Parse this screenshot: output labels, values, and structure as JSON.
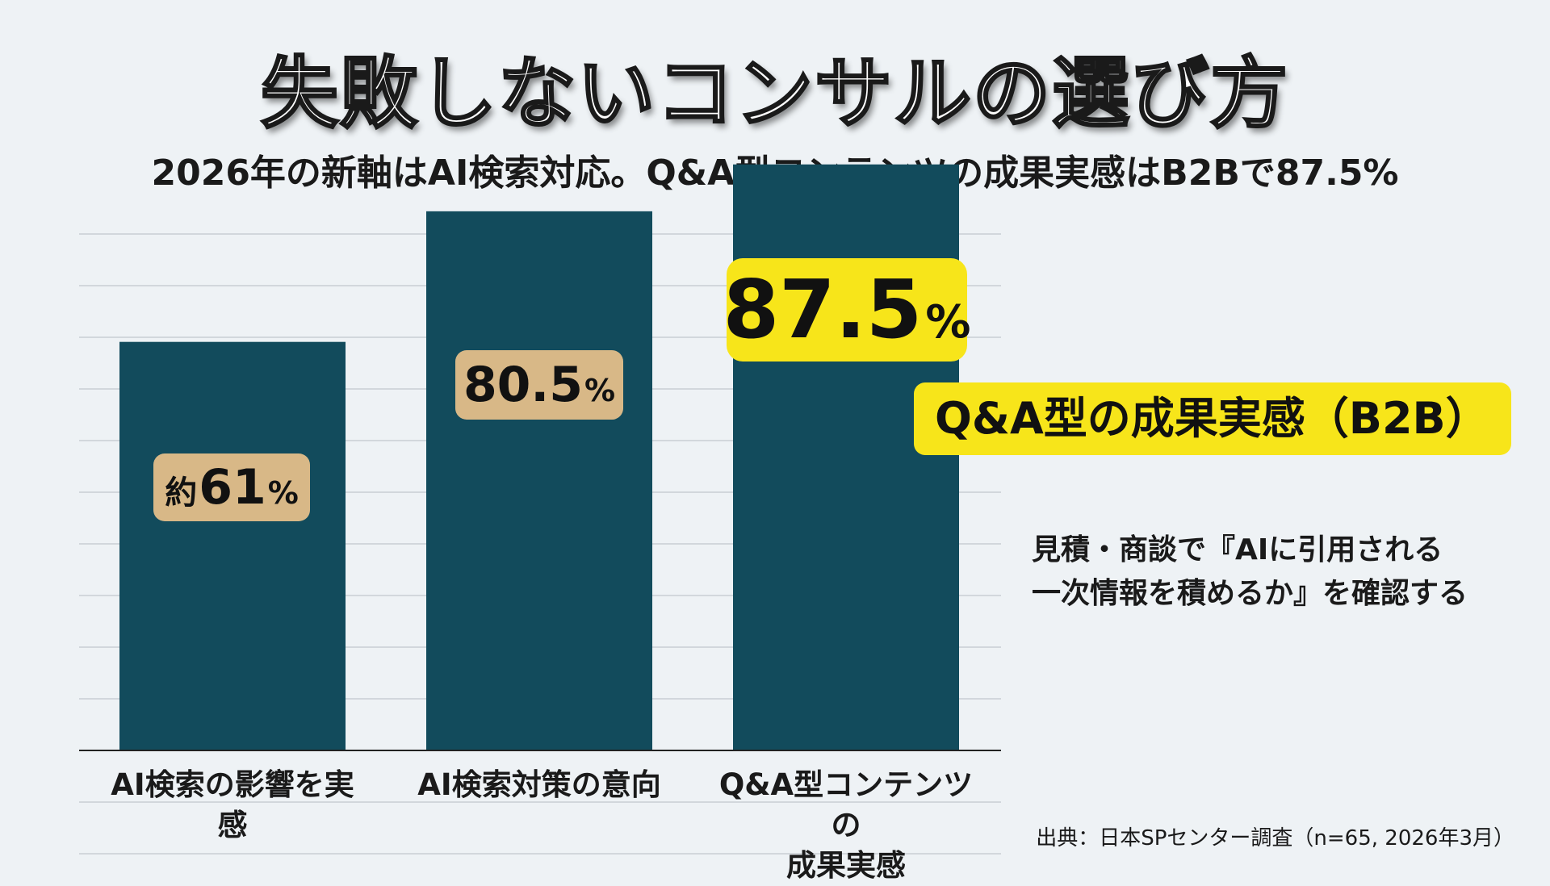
{
  "title": "失敗しないコンサルの選び方",
  "subtitle": "2026年の新軸はAI検索対応。Q&A型コンテンツの成果実感はB2Bで87.5%",
  "callout": "Q&A型の成果実感（B2B）",
  "note": {
    "line1": "見積・商談で『AIに引用される",
    "line2": "一次情報を積めるか』を確認する"
  },
  "source": "出典：日本SPセンター調査（n=65, 2026年3月）",
  "colors": {
    "bar": "#124b5c",
    "highlight": "#f7e51a",
    "value_pill": "#d8b887",
    "background": "#eef2f5"
  },
  "chart_data": {
    "type": "bar",
    "categories": [
      "AI検索の影響を実感",
      "AI検索対策の意向",
      "Q&A型コンテンツの成果実感"
    ],
    "category_lines": [
      [
        "AI検索の影響を実感"
      ],
      [
        "AI検索対策の意向"
      ],
      [
        "Q&A型コンテンツの",
        "成果実感"
      ]
    ],
    "values": [
      61,
      80.5,
      87.5
    ],
    "value_labels": [
      {
        "prefix": "約",
        "number": "61",
        "unit": "%"
      },
      {
        "prefix": "",
        "number": "80.5",
        "unit": "%"
      },
      {
        "prefix": "",
        "number": "87.5",
        "unit": "%"
      }
    ],
    "ylim": [
      0,
      100
    ],
    "grid": true,
    "highlighted_index": 2
  }
}
